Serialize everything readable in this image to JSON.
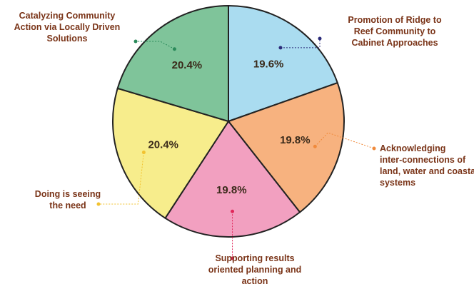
{
  "chart_data": {
    "type": "pie",
    "title": "",
    "slices": [
      {
        "label": "Promotion of Ridge to Reef Community to Cabinet Approaches",
        "lines": [
          "Promotion of Ridge to",
          "Reef Community to",
          "Cabinet Approaches"
        ],
        "value": 19.6,
        "display": "19.6%",
        "color": "#aadcf0",
        "leader_color": "#2b2b7a"
      },
      {
        "label": "Acknowledging inter-connections of land, water and coastal systems",
        "lines": [
          "Acknowledging",
          "inter-connections of",
          "land, water and coastal",
          "systems"
        ],
        "value": 19.8,
        "display": "19.8%",
        "color": "#f7b27f",
        "leader_color": "#f08a3c"
      },
      {
        "label": "Supporting results oriented planning and action",
        "lines": [
          "Supporting results",
          "oriented planning and",
          "action"
        ],
        "value": 19.8,
        "display": "19.8%",
        "color": "#f2a0c0",
        "leader_color": "#e0285a"
      },
      {
        "label": "Doing is seeing the need",
        "lines": [
          "Doing is seeing",
          "the need"
        ],
        "value": 20.4,
        "display": "20.4%",
        "color": "#f7ed8c",
        "leader_color": "#f2c230"
      },
      {
        "label": "Catalyzing Community Action via Locally Driven Solutions",
        "lines": [
          "Catalyzing Community",
          "Action via Locally Driven",
          "Solutions"
        ],
        "value": 20.4,
        "display": "20.4%",
        "color": "#7fc49a",
        "leader_color": "#2a8a5a"
      }
    ]
  }
}
